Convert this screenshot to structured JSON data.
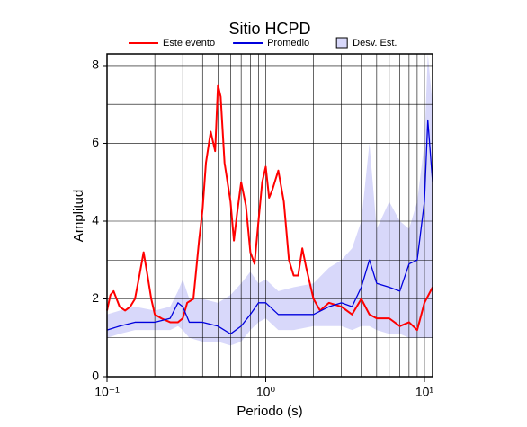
{
  "chart_data": {
    "type": "line",
    "title": "Sitio HCPD",
    "x_label": "Periodo (s)",
    "y_label": "Amplitud",
    "xscale": "log",
    "xlim": [
      0.1,
      11.25
    ],
    "ylim": [
      0,
      8.3
    ],
    "xticks": [
      {
        "value": 0.1,
        "label": "10⁻¹"
      },
      {
        "value": 1,
        "label": "10⁰"
      },
      {
        "value": 10,
        "label": "10¹"
      }
    ],
    "xgrid": [
      0.2,
      0.3,
      0.4,
      0.5,
      0.6,
      0.7,
      0.8,
      0.9,
      1,
      2,
      3,
      4,
      5,
      6,
      7,
      8,
      9,
      10
    ],
    "yticks": [
      0,
      2,
      4,
      6,
      8
    ],
    "ygrid": [
      1,
      2,
      3,
      4,
      5,
      6,
      7,
      8
    ],
    "legend": "top",
    "series": [
      {
        "name": "Este evento",
        "color": "#ff0000",
        "x": [
          0.1,
          0.105,
          0.11,
          0.12,
          0.13,
          0.14,
          0.15,
          0.16,
          0.17,
          0.18,
          0.19,
          0.2,
          0.22,
          0.25,
          0.28,
          0.3,
          0.32,
          0.35,
          0.38,
          0.4,
          0.42,
          0.45,
          0.48,
          0.5,
          0.52,
          0.55,
          0.6,
          0.63,
          0.66,
          0.7,
          0.75,
          0.8,
          0.85,
          0.9,
          0.95,
          1.0,
          1.05,
          1.1,
          1.2,
          1.3,
          1.4,
          1.5,
          1.6,
          1.7,
          1.8,
          2.0,
          2.2,
          2.5,
          3.0,
          3.5,
          4.0,
          4.5,
          5.0,
          6.0,
          7.0,
          8.0,
          9.0,
          10.0,
          11.25
        ],
        "values": [
          1.7,
          2.1,
          2.2,
          1.8,
          1.7,
          1.8,
          2.0,
          2.6,
          3.2,
          2.6,
          2.0,
          1.6,
          1.5,
          1.4,
          1.4,
          1.5,
          1.9,
          2.0,
          3.5,
          4.3,
          5.5,
          6.3,
          5.8,
          7.5,
          7.2,
          5.5,
          4.5,
          3.5,
          4.2,
          5.0,
          4.4,
          3.2,
          2.9,
          4.0,
          5.0,
          5.4,
          4.6,
          4.8,
          5.3,
          4.5,
          3.0,
          2.6,
          2.6,
          3.3,
          2.8,
          2.0,
          1.7,
          1.9,
          1.8,
          1.6,
          2.0,
          1.6,
          1.5,
          1.5,
          1.3,
          1.4,
          1.2,
          1.9,
          2.3
        ]
      },
      {
        "name": "Promedio",
        "color": "#0000dd",
        "x": [
          0.1,
          0.12,
          0.15,
          0.2,
          0.25,
          0.28,
          0.3,
          0.33,
          0.4,
          0.5,
          0.6,
          0.7,
          0.8,
          0.9,
          1.0,
          1.2,
          1.5,
          2.0,
          2.5,
          3.0,
          3.5,
          4.0,
          4.5,
          5.0,
          6.0,
          7.0,
          8.0,
          9.0,
          10.0,
          10.5,
          11.25
        ],
        "values": [
          1.2,
          1.3,
          1.4,
          1.4,
          1.5,
          1.9,
          1.8,
          1.4,
          1.4,
          1.3,
          1.1,
          1.3,
          1.6,
          1.9,
          1.9,
          1.6,
          1.6,
          1.6,
          1.8,
          1.9,
          1.8,
          2.3,
          3.0,
          2.4,
          2.3,
          2.2,
          2.9,
          3.0,
          4.5,
          6.6,
          5.0
        ]
      },
      {
        "name": "Desv. Est.",
        "color": "#d8d8fa",
        "band": true,
        "x": [
          0.1,
          0.12,
          0.15,
          0.2,
          0.25,
          0.28,
          0.3,
          0.33,
          0.4,
          0.5,
          0.6,
          0.7,
          0.8,
          0.9,
          1.0,
          1.2,
          1.5,
          2.0,
          2.5,
          3.0,
          3.5,
          4.0,
          4.5,
          5.0,
          6.0,
          7.0,
          8.0,
          9.0,
          10.0,
          10.5,
          11.25
        ],
        "upper": [
          1.6,
          1.7,
          1.8,
          1.7,
          1.8,
          2.2,
          2.5,
          2.0,
          2.0,
          1.9,
          2.1,
          2.4,
          2.7,
          2.4,
          2.5,
          2.2,
          2.3,
          2.4,
          2.8,
          3.0,
          3.3,
          4.0,
          6.0,
          3.8,
          4.5,
          4.0,
          3.8,
          4.5,
          6.0,
          8.3,
          7.0
        ],
        "lower": [
          1.0,
          1.1,
          1.2,
          1.2,
          1.2,
          1.3,
          1.2,
          1.0,
          0.9,
          0.9,
          0.8,
          0.9,
          1.2,
          1.4,
          1.5,
          1.2,
          1.2,
          1.3,
          1.3,
          1.3,
          1.2,
          1.3,
          1.3,
          1.2,
          1.1,
          1.1,
          1.0,
          1.0,
          1.0,
          1.0,
          1.0
        ]
      }
    ]
  }
}
